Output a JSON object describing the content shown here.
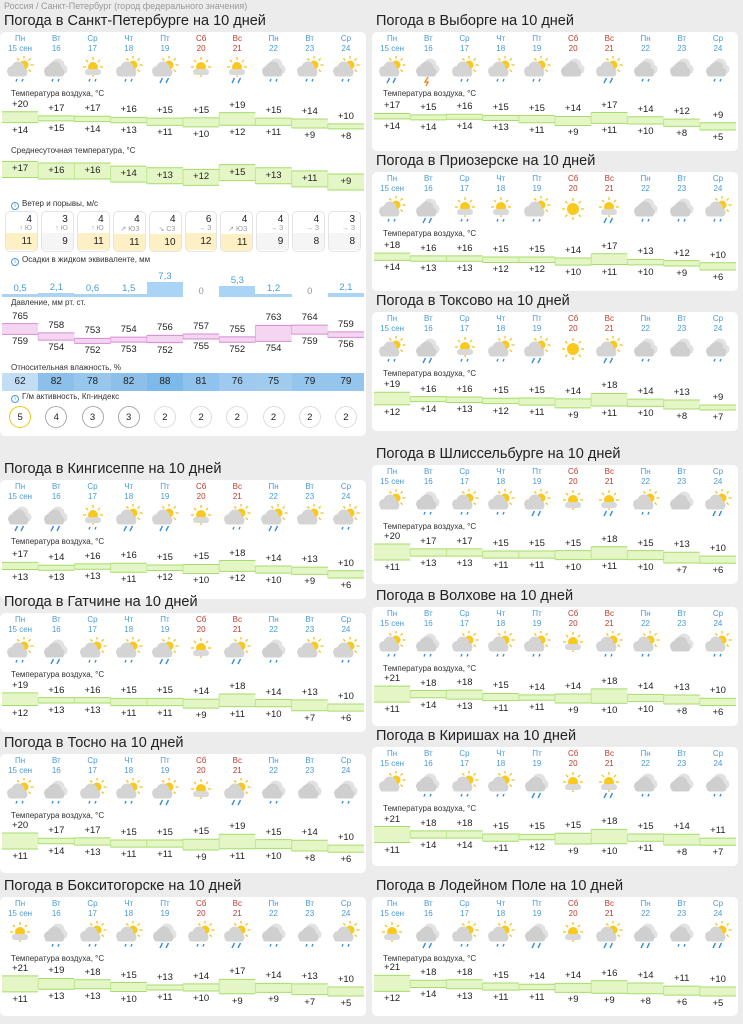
{
  "breadcrumb": "Россия / Санкт-Петербург (город федерального значения)",
  "days": [
    {
      "dow": "Пн",
      "date": "15 сен",
      "we": false
    },
    {
      "dow": "Вт",
      "date": "16",
      "we": false
    },
    {
      "dow": "Ср",
      "date": "17",
      "we": false
    },
    {
      "dow": "Чт",
      "date": "18",
      "we": false
    },
    {
      "dow": "Пт",
      "date": "19",
      "we": false
    },
    {
      "dow": "Сб",
      "date": "20",
      "we": true
    },
    {
      "dow": "Вс",
      "date": "21",
      "we": true
    },
    {
      "dow": "Пн",
      "date": "22",
      "we": false
    },
    {
      "dow": "Вт",
      "date": "23",
      "we": false
    },
    {
      "dow": "Ср",
      "date": "24",
      "we": false
    }
  ],
  "labels": {
    "temp": "Температура воздуха, °C",
    "avg": "Среднесуточная температура, °C",
    "wind": "Ветер и порывы, м/с",
    "precip": "Осадки в жидком эквиваленте, мм",
    "pressure": "Давление, мм рт. ст.",
    "humidity": "Относительная влажность, %",
    "geomag": "Г/м активность, Кп-индекс"
  },
  "colors": {
    "day": "#4a9ad8",
    "weekend": "#c0392b",
    "temp_band": "#e4f6c6",
    "temp_line": "#a6dc6a",
    "pressure_band": "#f5d6f2",
    "pressure_line": "#d48bd0",
    "precip": "#a9d4f5"
  },
  "main": {
    "title": "Погода в Санкт-Петербурге на 10 дней",
    "icons": [
      "PC1",
      "C1",
      "SC1",
      "PC1",
      "PC2",
      "SC0",
      "SC2",
      "C1",
      "PC1",
      "PC1"
    ],
    "high": [
      "+20",
      "+17",
      "+17",
      "+16",
      "+15",
      "+15",
      "+19",
      "+15",
      "+14",
      "+10"
    ],
    "low": [
      "+14",
      "+15",
      "+14",
      "+13",
      "+11",
      "+10",
      "+12",
      "+11",
      "+9",
      "+8"
    ],
    "avg": [
      "+17",
      "+16",
      "+16",
      "+14",
      "+13",
      "+12",
      "+15",
      "+13",
      "+11",
      "+9"
    ],
    "wind": [
      {
        "speed": "4",
        "dir": "↑ Ю",
        "gust": "11"
      },
      {
        "speed": "3",
        "dir": "↑ Ю",
        "gust": "9"
      },
      {
        "speed": "4",
        "dir": "↑ Ю",
        "gust": "11"
      },
      {
        "speed": "4",
        "dir": "↗ ЮЗ",
        "gust": "11"
      },
      {
        "speed": "4",
        "dir": "↘ СЗ",
        "gust": "10"
      },
      {
        "speed": "6",
        "dir": "→ З",
        "gust": "12"
      },
      {
        "speed": "4",
        "dir": "↗ ЮЗ",
        "gust": "11"
      },
      {
        "speed": "4",
        "dir": "→ З",
        "gust": "9"
      },
      {
        "speed": "4",
        "dir": "→ З",
        "gust": "8"
      },
      {
        "speed": "3",
        "dir": "→ З",
        "gust": "8"
      }
    ],
    "precip": [
      "0,5",
      "2,1",
      "0,6",
      "1,5",
      "7,3",
      "0",
      "5,3",
      "1,2",
      "0",
      "2,1"
    ],
    "pressure_high": [
      "765",
      "758",
      "753",
      "754",
      "756",
      "757",
      "755",
      "763",
      "764",
      "759"
    ],
    "pressure_low": [
      "759",
      "754",
      "752",
      "753",
      "752",
      "755",
      "752",
      "754",
      "759",
      "756"
    ],
    "humidity": [
      "62",
      "82",
      "78",
      "82",
      "88",
      "81",
      "76",
      "75",
      "79",
      "79"
    ],
    "geomag": [
      "5",
      "4",
      "3",
      "3",
      "2",
      "2",
      "2",
      "2",
      "2",
      "2"
    ]
  },
  "cities": [
    {
      "title": "Погода в Кингисеппе на 10 дней",
      "icons": [
        "C2",
        "C2",
        "SC1",
        "PC2",
        "PC2",
        "SC0",
        "PC1",
        "PC2",
        "PC0",
        "PC1"
      ],
      "high": [
        "+17",
        "+14",
        "+16",
        "+16",
        "+15",
        "+15",
        "+18",
        "+14",
        "+13",
        "+10"
      ],
      "low": [
        "+13",
        "+13",
        "+13",
        "+11",
        "+12",
        "+10",
        "+12",
        "+10",
        "+9",
        "+6"
      ]
    },
    {
      "title": "Погода в Гатчине на 10 дней",
      "icons": [
        "PC1",
        "C2",
        "PC1",
        "PC1",
        "PC2",
        "SC0",
        "PC2",
        "C1",
        "PC0",
        "PC1"
      ],
      "high": [
        "+19",
        "+16",
        "+16",
        "+15",
        "+15",
        "+14",
        "+18",
        "+14",
        "+13",
        "+10"
      ],
      "low": [
        "+12",
        "+13",
        "+13",
        "+11",
        "+11",
        "+9",
        "+11",
        "+10",
        "+7",
        "+6"
      ]
    },
    {
      "title": "Погода в Тосно на 10 дней",
      "icons": [
        "PC1",
        "C1",
        "PC1",
        "PC1",
        "PC2",
        "SC0",
        "PC2",
        "C1",
        "C0",
        "C1"
      ],
      "high": [
        "+20",
        "+17",
        "+17",
        "+15",
        "+15",
        "+15",
        "+19",
        "+15",
        "+14",
        "+10"
      ],
      "low": [
        "+11",
        "+14",
        "+13",
        "+11",
        "+11",
        "+9",
        "+11",
        "+10",
        "+8",
        "+6"
      ]
    },
    {
      "title": "Погода в Бокситогорске на 10 дней",
      "icons": [
        "SC0",
        "C1",
        "PC1",
        "PC1",
        "C2",
        "PC1",
        "PC2",
        "C1",
        "C1",
        "PC1"
      ],
      "high": [
        "+21",
        "+19",
        "+18",
        "+15",
        "+13",
        "+14",
        "+17",
        "+14",
        "+13",
        "+10"
      ],
      "low": [
        "+11",
        "+13",
        "+13",
        "+10",
        "+11",
        "+10",
        "+9",
        "+9",
        "+7",
        "+5"
      ]
    },
    {
      "title": "Погода в Выборге на 10 дней",
      "icons": [
        "PC2",
        "CT",
        "PC1",
        "PC1",
        "PC1",
        "C0",
        "PC2",
        "C1",
        "C0",
        "C1"
      ],
      "high": [
        "+17",
        "+15",
        "+16",
        "+15",
        "+15",
        "+14",
        "+17",
        "+14",
        "+12",
        "+9"
      ],
      "low": [
        "+14",
        "+14",
        "+14",
        "+13",
        "+11",
        "+9",
        "+11",
        "+10",
        "+8",
        "+5"
      ]
    },
    {
      "title": "Погода в Приозерске на 10 дней",
      "icons": [
        "PC1",
        "C2",
        "SC1",
        "SC1",
        "PC1",
        "S0",
        "SC2",
        "C1",
        "C1",
        "PC1"
      ],
      "high": [
        "+18",
        "+16",
        "+16",
        "+15",
        "+15",
        "+14",
        "+17",
        "+13",
        "+12",
        "+10"
      ],
      "low": [
        "+14",
        "+13",
        "+13",
        "+12",
        "+12",
        "+10",
        "+11",
        "+10",
        "+9",
        "+6"
      ]
    },
    {
      "title": "Погода в Токсово на 10 дней",
      "icons": [
        "PC1",
        "C2",
        "SC1",
        "PC1",
        "PC2",
        "S0",
        "PC2",
        "C1",
        "C0",
        "C1"
      ],
      "high": [
        "+19",
        "+16",
        "+16",
        "+15",
        "+15",
        "+14",
        "+18",
        "+14",
        "+13",
        "+9"
      ],
      "low": [
        "+12",
        "+14",
        "+13",
        "+12",
        "+11",
        "+9",
        "+11",
        "+10",
        "+8",
        "+7"
      ]
    },
    {
      "title": "Погода в Шлиссельбурге на 10 дней",
      "icons": [
        "PC0",
        "C1",
        "PC1",
        "PC1",
        "PC2",
        "SC0",
        "SC2",
        "PC1",
        "C0",
        "PC2"
      ],
      "high": [
        "+20",
        "+17",
        "+17",
        "+15",
        "+15",
        "+15",
        "+18",
        "+15",
        "+13",
        "+10"
      ],
      "low": [
        "+11",
        "+13",
        "+13",
        "+11",
        "+11",
        "+10",
        "+11",
        "+10",
        "+7",
        "+6"
      ]
    },
    {
      "title": "Погода в Волхове на 10 дней",
      "icons": [
        "PC1",
        "C1",
        "PC1",
        "PC1",
        "PC1",
        "SC0",
        "PC1",
        "PC1",
        "C0",
        "PC1"
      ],
      "high": [
        "+21",
        "+18",
        "+18",
        "+15",
        "+14",
        "+14",
        "+18",
        "+14",
        "+13",
        "+10"
      ],
      "low": [
        "+11",
        "+14",
        "+13",
        "+11",
        "+11",
        "+9",
        "+10",
        "+10",
        "+8",
        "+6"
      ]
    },
    {
      "title": "Погода в Киришах на 10 дней",
      "icons": [
        "PC0",
        "C1",
        "PC1",
        "PC1",
        "C2",
        "SC0",
        "SC2",
        "C1",
        "C0",
        "C1"
      ],
      "high": [
        "+21",
        "+18",
        "+18",
        "+15",
        "+15",
        "+15",
        "+18",
        "+15",
        "+14",
        "+11"
      ],
      "low": [
        "+11",
        "+14",
        "+14",
        "+11",
        "+12",
        "+9",
        "+10",
        "+11",
        "+8",
        "+7"
      ]
    },
    {
      "title": "Погода в Лодейном Поле на 10 дней",
      "icons": [
        "SC0",
        "C2",
        "PC1",
        "PC1",
        "C2",
        "SC0",
        "PC2",
        "C2",
        "C1",
        "PC2"
      ],
      "high": [
        "+21",
        "+18",
        "+18",
        "+15",
        "+14",
        "+14",
        "+16",
        "+14",
        "+11",
        "+10"
      ],
      "low": [
        "+12",
        "+14",
        "+13",
        "+11",
        "+11",
        "+9",
        "+9",
        "+8",
        "+6",
        "+5"
      ]
    }
  ]
}
